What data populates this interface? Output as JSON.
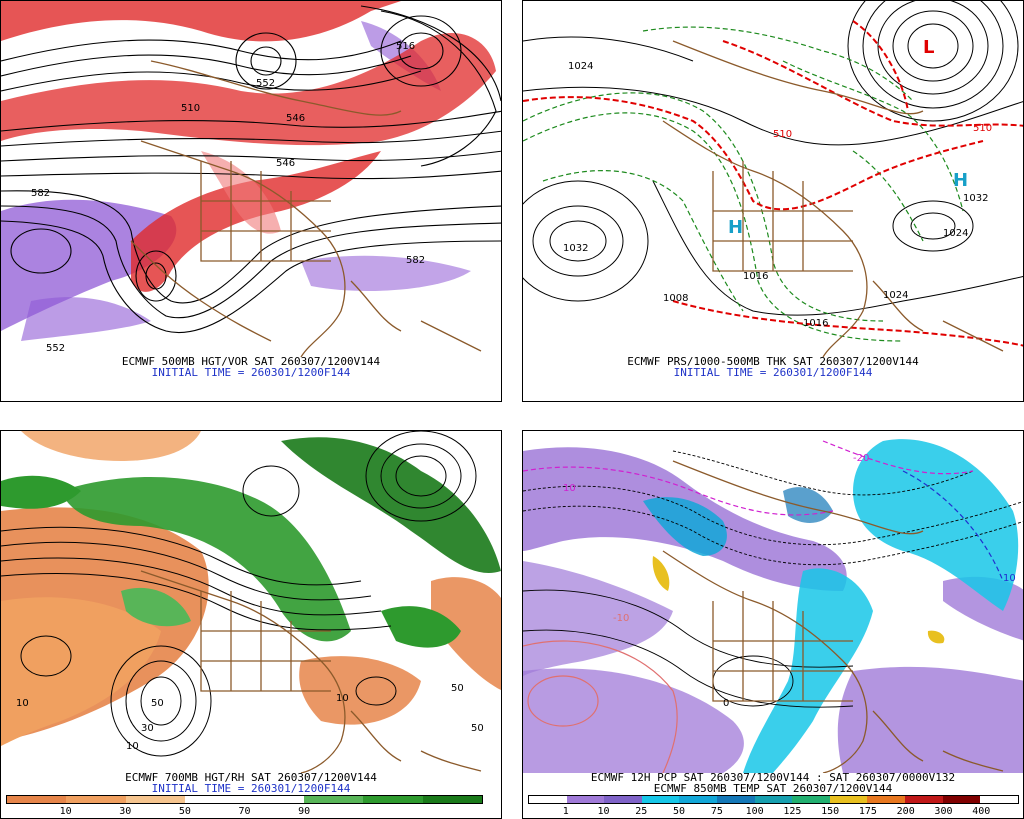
{
  "panels": {
    "p500": {
      "caption_line1": "ECMWF 500MB HGT/VOR SAT 260307/1200V144",
      "caption_line2": "INITIAL TIME = 260301/1200F144",
      "contour_labels": [
        "552",
        "546",
        "510",
        "546",
        "582",
        "582",
        "552",
        "516"
      ]
    },
    "pmsl": {
      "caption_line1": "ECMWF PRS/1000-500MB THK SAT 260307/1200V144",
      "caption_line2": "INITIAL TIME = 260301/1200F144",
      "contour_labels": [
        "1032",
        "1024",
        "1024",
        "1032",
        "1024",
        "1016",
        "1016",
        "1008",
        "510",
        "510"
      ],
      "pressure_centers": [
        "L",
        "H",
        "H"
      ]
    },
    "p700": {
      "caption_line1": "ECMWF 700MB HGT/RH SAT 260307/1200V144",
      "caption_line2": "INITIAL TIME = 260301/1200F144",
      "colorbar_labels": [
        "10",
        "30",
        "50",
        "70",
        "90"
      ],
      "colorbar_colors": [
        "#e6854a",
        "#f0a060",
        "#f6c58f",
        "#ffffff",
        "#ffffff",
        "#58b558",
        "#2e9a2e",
        "#1a7a1a"
      ],
      "contour_labels": [
        "30",
        "50",
        "10",
        "50",
        "10",
        "10",
        "50"
      ]
    },
    "ppcp": {
      "caption_line1": "ECMWF 12H PCP SAT 260307/1200V144 : SAT 260307/0000V132",
      "caption_line2": "ECMWF 850MB TEMP SAT 260307/1200V144",
      "colorbar_labels": [
        "1",
        "10",
        "25",
        "50",
        "75",
        "100",
        "125",
        "150",
        "175",
        "200",
        "300",
        "400"
      ],
      "colorbar_colors": [
        "#ffffff",
        "#a07ad8",
        "#7f63c8",
        "#17c7e8",
        "#12a7d8",
        "#1478b8",
        "#17a0b0",
        "#22b070",
        "#e8c020",
        "#e87820",
        "#c01818",
        "#800000",
        "#ffffff"
      ],
      "contour_labels": [
        "10",
        "-10",
        "0",
        "10",
        "-20"
      ]
    }
  },
  "colors": {
    "caption_blue": "#1f33c8",
    "coast": "#8b5a2b",
    "contour": "#000000",
    "vort_red": "#e02a2a",
    "vort_purple": "#8f5ad6",
    "thk_red": "#e00000",
    "thk_green": "#1d8a1d",
    "rh_green": "#2e9a2e",
    "rh_orange": "#e6854a"
  },
  "icons": [
    "coastline-map",
    "contour-lines"
  ]
}
